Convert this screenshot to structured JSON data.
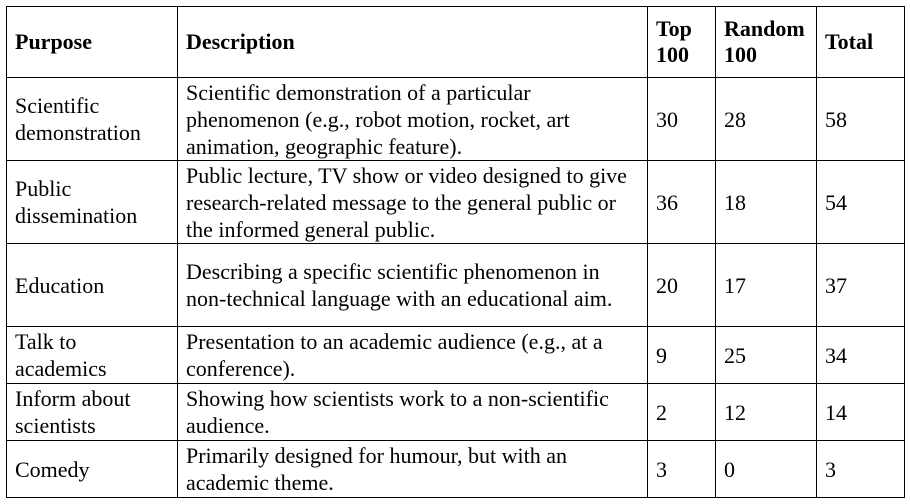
{
  "table": {
    "headers": {
      "purpose": "Purpose",
      "description": "Description",
      "top100": "Top\n100",
      "random100": "Random\n100",
      "total": "Total"
    },
    "rows": [
      {
        "purpose": "Scientific\ndemonstration",
        "description": "Scientific demonstration of a particular phenomenon (e.g., robot motion, rocket, art animation, geographic feature).",
        "top100": "30",
        "random100": "28",
        "total": "58"
      },
      {
        "purpose": "Public\ndissemination",
        "description": "Public lecture, TV show or video designed to give research-related message to the general public or the informed general public.",
        "top100": "36",
        "random100": "18",
        "total": "54"
      },
      {
        "purpose": "Education",
        "description": "Describing a specific scientific phenomenon in non-technical language with an educational aim.",
        "top100": "20",
        "random100": "17",
        "total": "37"
      },
      {
        "purpose": "Talk to\nacademics",
        "description": "Presentation to an academic audience (e.g., at a conference).",
        "top100": "9",
        "random100": "25",
        "total": "34"
      },
      {
        "purpose": "Inform about\nscientists",
        "description": "Showing how scientists work to a non-scientific audience.",
        "top100": "2",
        "random100": "12",
        "total": "14"
      },
      {
        "purpose": "Comedy",
        "description": "Primarily designed for humour, but with an academic theme.",
        "top100": "3",
        "random100": "0",
        "total": "3"
      }
    ]
  }
}
